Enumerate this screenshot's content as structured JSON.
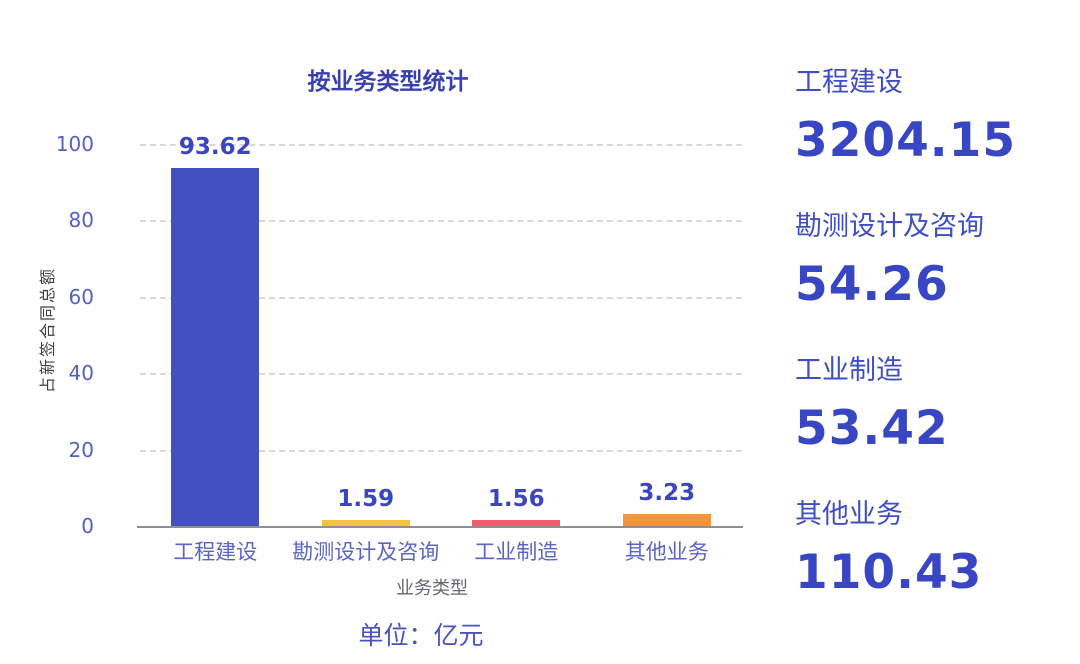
{
  "chart_data": {
    "type": "bar",
    "title": "按业务类型统计",
    "categories": [
      "工程建设",
      "勘测设计及咨询",
      "工业制造",
      "其他业务"
    ],
    "values": [
      93.62,
      1.59,
      1.56,
      3.23
    ],
    "value_labels": [
      "93.62",
      "1.59",
      "1.56",
      "3.23"
    ],
    "bar_colors": [
      "#4250c0",
      "#f5c342",
      "#ee5f6e",
      "#f7933a"
    ],
    "xlabel": "业务类型",
    "ylabel": "占新签合同总额",
    "ylim": [
      0,
      100
    ],
    "yticks": [
      0,
      20,
      40,
      60,
      80,
      100
    ],
    "grid": "horizontal-dashed",
    "legend": "none",
    "unit_note": "单位：亿元"
  },
  "stats_panel": {
    "items": [
      {
        "label": "工程建设",
        "value": "3204.15"
      },
      {
        "label": "勘测设计及咨询",
        "value": "54.26"
      },
      {
        "label": "工业制造",
        "value": "53.42"
      },
      {
        "label": "其他业务",
        "value": "110.43"
      }
    ]
  },
  "colors": {
    "title": "#383fae",
    "axis_tick": "#5560c0",
    "category_label": "#5a64c4",
    "bar_value_label": "#3b46bc",
    "stat_label": "#3f4ec5",
    "stat_value": "#3846c4",
    "unit_note": "#4a53bb",
    "x_axis_title": "#66666e",
    "y_axis_title": "#3e3e46",
    "gridline": "#d8d8d8",
    "baseline": "#8e8e93"
  }
}
